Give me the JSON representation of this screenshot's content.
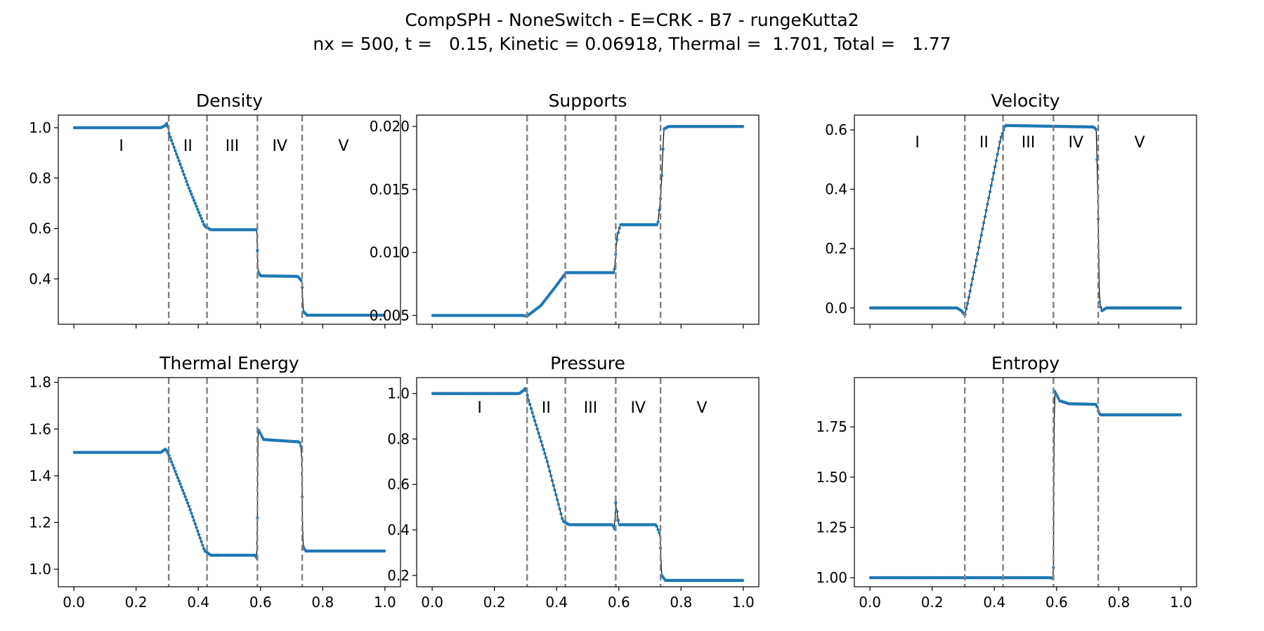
{
  "figure": {
    "title_line1": "CompSPH - NoneSwitch - E=CRK - B7 - rungeKutta2",
    "title_line2": "nx = 500, t =   0.15, Kinetic = 0.06918, Thermal =  1.701, Total =   1.77"
  },
  "colors": {
    "points": "#1f77b4",
    "exact": "#000000",
    "boundary": "#808080"
  },
  "boundaries": [
    0.305,
    0.428,
    0.59,
    0.734
  ],
  "region_labels": [
    "I",
    "II",
    "III",
    "IV",
    "V"
  ],
  "chart_data": [
    {
      "type": "scatter",
      "title": "Density",
      "xlim": [
        -0.05,
        1.05
      ],
      "ylim": [
        0.22,
        1.05
      ],
      "yticks": [
        "0.4",
        "0.6",
        "0.8",
        "1.0"
      ],
      "xticks": [],
      "show_region_labels": true,
      "label_y": 0.93,
      "profile": [
        [
          0,
          1.0
        ],
        [
          0.28,
          1.0
        ],
        [
          0.295,
          1.01
        ],
        [
          0.3,
          1.02
        ],
        [
          0.305,
          0.98
        ],
        [
          0.37,
          0.76
        ],
        [
          0.42,
          0.61
        ],
        [
          0.44,
          0.595
        ],
        [
          0.588,
          0.595
        ],
        [
          0.592,
          0.43
        ],
        [
          0.6,
          0.412
        ],
        [
          0.72,
          0.41
        ],
        [
          0.733,
          0.39
        ],
        [
          0.738,
          0.27
        ],
        [
          0.75,
          0.256
        ],
        [
          1.0,
          0.256
        ]
      ]
    },
    {
      "type": "scatter",
      "title": "Supports",
      "xlim": [
        -0.05,
        1.05
      ],
      "ylim": [
        0.0043,
        0.0209
      ],
      "yticks": [
        "0.005",
        "0.010",
        "0.015",
        "0.020"
      ],
      "xticks": [],
      "show_region_labels": false,
      "profile": [
        [
          0,
          0.005
        ],
        [
          0.29,
          0.005
        ],
        [
          0.305,
          0.00495
        ],
        [
          0.35,
          0.0058
        ],
        [
          0.4,
          0.0074
        ],
        [
          0.43,
          0.0084
        ],
        [
          0.585,
          0.0084
        ],
        [
          0.595,
          0.0113
        ],
        [
          0.605,
          0.0122
        ],
        [
          0.725,
          0.0122
        ],
        [
          0.735,
          0.0145
        ],
        [
          0.745,
          0.0198
        ],
        [
          0.76,
          0.02
        ],
        [
          1.0,
          0.02
        ]
      ]
    },
    {
      "type": "scatter",
      "title": "Velocity",
      "xlim": [
        -0.05,
        1.05
      ],
      "ylim": [
        -0.055,
        0.65
      ],
      "yticks": [
        "0.0",
        "0.2",
        "0.4",
        "0.6"
      ],
      "xticks": [],
      "show_region_labels": true,
      "label_y": 0.56,
      "profile": [
        [
          0,
          0.0
        ],
        [
          0.28,
          0.0
        ],
        [
          0.295,
          -0.01
        ],
        [
          0.305,
          -0.025
        ],
        [
          0.315,
          0.02
        ],
        [
          0.42,
          0.57
        ],
        [
          0.435,
          0.615
        ],
        [
          0.72,
          0.61
        ],
        [
          0.728,
          0.6
        ],
        [
          0.734,
          0.3
        ],
        [
          0.738,
          0.02
        ],
        [
          0.745,
          -0.01
        ],
        [
          0.76,
          0.0
        ],
        [
          1.0,
          0.0
        ]
      ]
    },
    {
      "type": "scatter",
      "title": "Thermal Energy",
      "xlim": [
        -0.05,
        1.05
      ],
      "ylim": [
        0.925,
        1.82
      ],
      "yticks": [
        "1.0",
        "1.2",
        "1.4",
        "1.6",
        "1.8"
      ],
      "xticks": [
        "0.0",
        "0.2",
        "0.4",
        "0.6",
        "0.8",
        "1.0"
      ],
      "show_region_labels": false,
      "profile": [
        [
          0,
          1.5
        ],
        [
          0.28,
          1.5
        ],
        [
          0.295,
          1.515
        ],
        [
          0.305,
          1.49
        ],
        [
          0.37,
          1.27
        ],
        [
          0.42,
          1.08
        ],
        [
          0.44,
          1.06
        ],
        [
          0.585,
          1.06
        ],
        [
          0.589,
          1.03
        ],
        [
          0.592,
          1.6
        ],
        [
          0.61,
          1.555
        ],
        [
          0.725,
          1.545
        ],
        [
          0.732,
          1.52
        ],
        [
          0.736,
          1.1
        ],
        [
          0.745,
          1.078
        ],
        [
          1.0,
          1.078
        ]
      ]
    },
    {
      "type": "scatter",
      "title": "Pressure",
      "xlim": [
        -0.05,
        1.05
      ],
      "ylim": [
        0.15,
        1.07
      ],
      "yticks": [
        "0.2",
        "0.4",
        "0.6",
        "0.8",
        "1.0"
      ],
      "xticks": [
        "0.0",
        "0.2",
        "0.4",
        "0.6",
        "0.8",
        "1.0"
      ],
      "show_region_labels": true,
      "label_y": 0.94,
      "profile": [
        [
          0,
          1.0
        ],
        [
          0.28,
          1.0
        ],
        [
          0.295,
          1.015
        ],
        [
          0.3,
          1.025
        ],
        [
          0.31,
          0.97
        ],
        [
          0.37,
          0.7
        ],
        [
          0.42,
          0.44
        ],
        [
          0.44,
          0.423
        ],
        [
          0.58,
          0.423
        ],
        [
          0.586,
          0.405
        ],
        [
          0.59,
          0.52
        ],
        [
          0.6,
          0.423
        ],
        [
          0.72,
          0.423
        ],
        [
          0.732,
          0.38
        ],
        [
          0.738,
          0.2
        ],
        [
          0.75,
          0.178
        ],
        [
          1.0,
          0.178
        ]
      ]
    },
    {
      "type": "scatter",
      "title": "Entropy",
      "xlim": [
        -0.05,
        1.05
      ],
      "ylim": [
        0.955,
        1.995
      ],
      "yticks": [
        "1.00",
        "1.25",
        "1.50",
        "1.75"
      ],
      "xticks": [
        "0.0",
        "0.2",
        "0.4",
        "0.6",
        "0.8",
        "1.0"
      ],
      "show_region_labels": false,
      "profile": [
        [
          0,
          1.0
        ],
        [
          0.585,
          1.0
        ],
        [
          0.588,
          0.99
        ],
        [
          0.59,
          1.05
        ],
        [
          0.593,
          1.93
        ],
        [
          0.61,
          1.88
        ],
        [
          0.64,
          1.865
        ],
        [
          0.728,
          1.862
        ],
        [
          0.734,
          1.83
        ],
        [
          0.74,
          1.81
        ],
        [
          1.0,
          1.81
        ]
      ]
    }
  ]
}
